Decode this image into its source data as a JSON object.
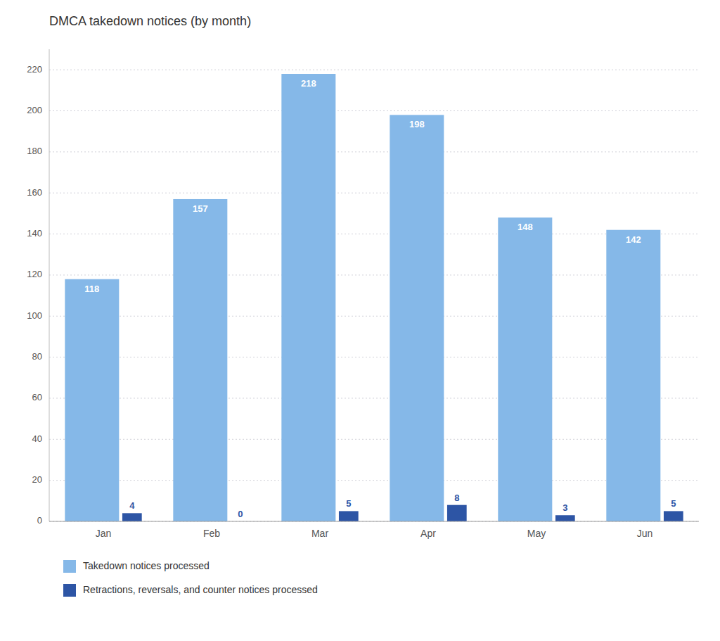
{
  "chart_data": {
    "type": "bar",
    "title": "DMCA takedown notices (by month)",
    "categories": [
      "Jan",
      "Feb",
      "Mar",
      "Apr",
      "May",
      "Jun"
    ],
    "series": [
      {
        "name": "Takedown notices processed",
        "color": "#85b8e8",
        "values": [
          118,
          157,
          218,
          198,
          148,
          142
        ]
      },
      {
        "name": "Retractions, reversals, and counter notices processed",
        "color": "#2d55a5",
        "values": [
          4,
          0,
          5,
          8,
          3,
          5
        ]
      }
    ],
    "ylim": [
      0,
      230
    ],
    "yticks": [
      0,
      20,
      40,
      60,
      80,
      100,
      120,
      140,
      160,
      180,
      200,
      220
    ],
    "grid": true,
    "legend": "bottom",
    "data_labels": true
  }
}
